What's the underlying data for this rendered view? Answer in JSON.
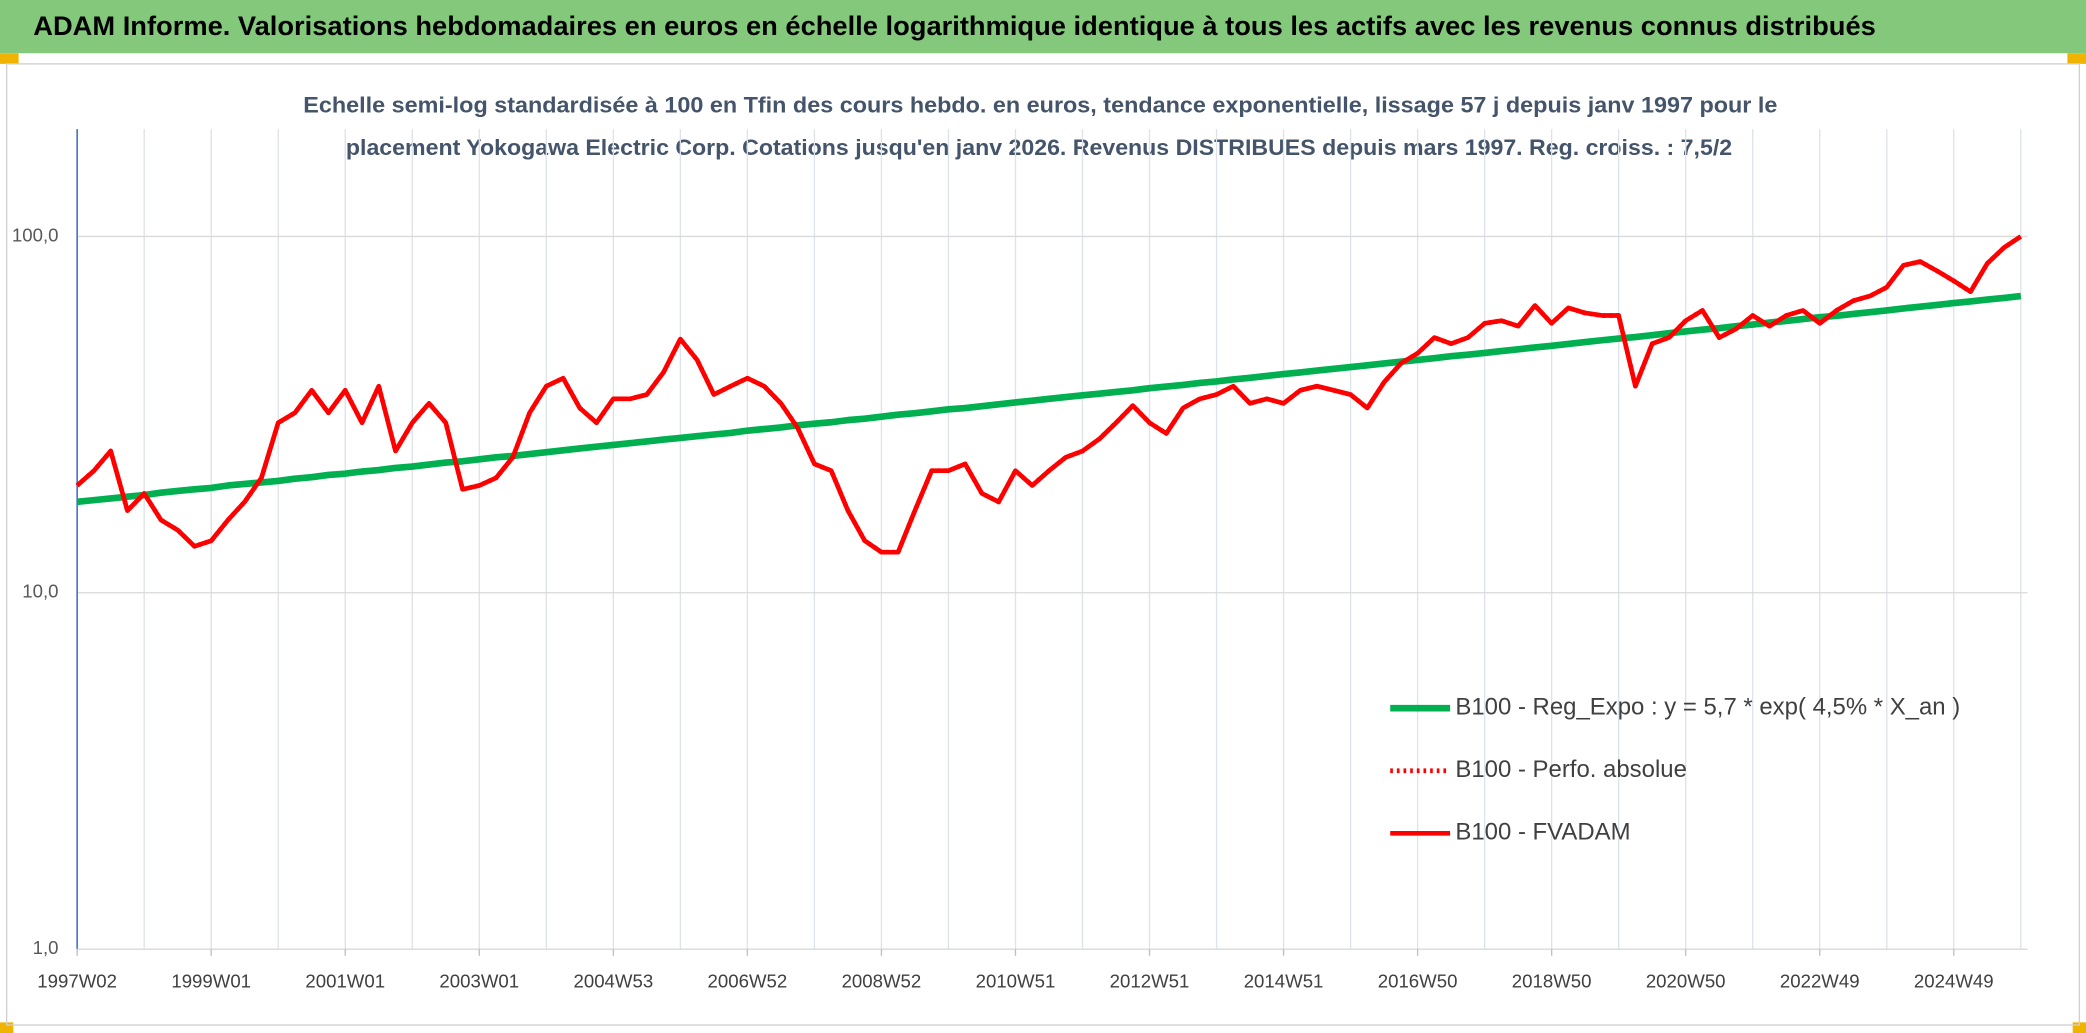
{
  "chart_data": {
    "type": "line",
    "title": "ADAM Informe. Valorisations hebdomadaires en euros en échelle logarithmique identique à tous les actifs avec les revenus connus distribués",
    "subtitle": [
      "Echelle semi-log standardisée à 100 en Tfin des cours hebdo. en euros, tendance exponentielle, lissage 57 j depuis janv 1997 pour le",
      "placement Yokogawa Electric Corp. Cotations jusqu'en janv 2026. Revenus DISTRIBUES depuis mars 1997. Reg. croiss. : 7,5/2"
    ],
    "log_scale": true,
    "grid": true,
    "legend_position": "lower right",
    "ylim": [
      1,
      200
    ],
    "yticks": [
      {
        "value": 1,
        "label": "1,0"
      },
      {
        "value": 10,
        "label": "10,0"
      },
      {
        "value": 100,
        "label": "100,0"
      }
    ],
    "categories": [
      "1997W02",
      null,
      null,
      null,
      null,
      null,
      null,
      null,
      "1999W01",
      null,
      null,
      null,
      null,
      null,
      null,
      null,
      "2001W01",
      null,
      null,
      null,
      null,
      null,
      null,
      null,
      "2003W01",
      null,
      null,
      null,
      null,
      null,
      null,
      null,
      "2004W53",
      null,
      null,
      null,
      null,
      null,
      null,
      null,
      "2006W52",
      null,
      null,
      null,
      null,
      null,
      null,
      null,
      "2008W52",
      null,
      null,
      null,
      null,
      null,
      null,
      null,
      "2010W51",
      null,
      null,
      null,
      null,
      null,
      null,
      null,
      "2012W51",
      null,
      null,
      null,
      null,
      null,
      null,
      null,
      "2014W51",
      null,
      null,
      null,
      null,
      null,
      null,
      null,
      "2016W50",
      null,
      null,
      null,
      null,
      null,
      null,
      null,
      "2018W50",
      null,
      null,
      null,
      null,
      null,
      null,
      null,
      "2020W50",
      null,
      null,
      null,
      null,
      null,
      null,
      null,
      "2022W49",
      null,
      null,
      null,
      null,
      null,
      null,
      null,
      "2024W49",
      null,
      null,
      null,
      null
    ],
    "series": [
      {
        "name": "B100 - Reg_Expo : y = 5,7 * exp( 4,5% *  X_an )",
        "color": "#00b050",
        "style": "solid",
        "values": [
          18.0,
          18.2,
          18.4,
          18.6,
          18.8,
          19.1,
          19.3,
          19.5,
          19.7,
          20.0,
          20.2,
          20.4,
          20.6,
          20.9,
          21.1,
          21.4,
          21.6,
          21.9,
          22.1,
          22.4,
          22.6,
          22.9,
          23.2,
          23.4,
          23.7,
          24.0,
          24.2,
          24.5,
          24.8,
          25.1,
          25.4,
          25.7,
          26.0,
          26.3,
          26.6,
          26.9,
          27.2,
          27.5,
          27.8,
          28.1,
          28.5,
          28.8,
          29.1,
          29.5,
          29.8,
          30.1,
          30.5,
          30.8,
          31.2,
          31.6,
          31.9,
          32.3,
          32.7,
          33.0,
          33.4,
          33.8,
          34.2,
          34.6,
          35.0,
          35.4,
          35.8,
          36.2,
          36.6,
          37.0,
          37.5,
          37.9,
          38.3,
          38.8,
          39.2,
          39.7,
          40.1,
          40.6,
          41.1,
          41.5,
          42.0,
          42.5,
          43.0,
          43.5,
          44.0,
          44.5,
          45.0,
          45.5,
          46.1,
          46.6,
          47.1,
          47.7,
          48.2,
          48.8,
          49.3,
          49.9,
          50.5,
          51.1,
          51.7,
          52.2,
          52.8,
          53.5,
          54.1,
          54.7,
          55.3,
          56.0,
          56.6,
          57.3,
          57.9,
          58.6,
          59.3,
          59.9,
          60.6,
          61.3,
          62.0,
          62.8,
          63.5,
          64.2,
          65.0,
          65.7,
          66.5,
          67.2,
          68.0
        ]
      },
      {
        "name": "B100 - Perfo. absolue",
        "color": "#ff0000",
        "style": "dotted",
        "values": [
          20,
          22,
          25,
          17,
          19,
          16,
          15,
          13.5,
          14,
          16,
          18,
          21,
          30,
          32,
          37,
          32,
          37,
          30,
          38,
          25,
          30,
          34,
          30,
          19.5,
          20,
          21,
          24,
          32,
          38,
          40,
          33,
          30,
          35,
          35,
          36,
          41.6,
          51.5,
          45,
          36,
          38,
          40,
          38,
          34,
          29,
          23,
          22,
          17,
          14,
          13,
          13,
          17,
          22,
          22,
          23,
          19,
          18,
          22,
          20,
          22,
          24,
          25,
          27,
          30,
          33.5,
          30,
          28,
          33,
          35,
          36,
          38,
          34,
          35,
          34,
          37,
          38,
          37,
          36,
          33,
          39,
          44,
          47,
          52,
          50,
          52,
          57,
          58,
          56,
          64,
          57,
          63,
          61,
          60,
          60,
          38,
          50,
          52,
          58,
          62,
          52,
          55,
          60,
          56,
          60,
          62,
          57,
          62,
          66,
          68,
          72,
          83,
          85,
          80,
          75,
          70,
          84,
          93,
          100
        ]
      },
      {
        "name": "B100 - FVADAM",
        "color": "#ff0000",
        "style": "solid",
        "values": [
          20,
          22,
          25,
          17,
          19,
          16,
          15,
          13.5,
          14,
          16,
          18,
          21,
          30,
          32,
          37,
          32,
          37,
          30,
          38,
          25,
          30,
          34,
          30,
          19.5,
          20,
          21,
          24,
          32,
          38,
          40,
          33,
          30,
          35,
          35,
          36,
          41.6,
          51.5,
          45,
          36,
          38,
          40,
          38,
          34,
          29,
          23,
          22,
          17,
          14,
          13,
          13,
          17,
          22,
          22,
          23,
          19,
          18,
          22,
          20,
          22,
          24,
          25,
          27,
          30,
          33.5,
          30,
          28,
          33,
          35,
          36,
          38,
          34,
          35,
          34,
          37,
          38,
          37,
          36,
          33,
          39,
          44,
          47,
          52,
          50,
          52,
          57,
          58,
          56,
          64,
          57,
          63,
          61,
          60,
          60,
          38,
          50,
          52,
          58,
          62,
          52,
          55,
          60,
          56,
          60,
          62,
          57,
          62,
          66,
          68,
          72,
          83,
          85,
          80,
          75,
          70,
          84,
          93,
          100
        ]
      }
    ]
  }
}
